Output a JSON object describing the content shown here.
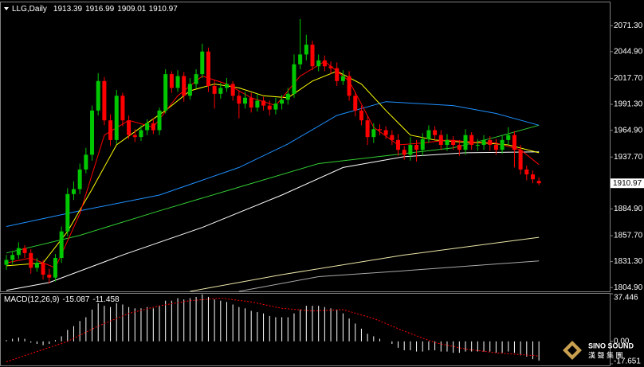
{
  "chart_data": {
    "type": "candlestick",
    "title": "LLG,Daily",
    "up_color": "#00c800",
    "down_color": "#ff0000",
    "open": [
      1828,
      1833,
      1838,
      1845,
      1840,
      1825,
      1830,
      1818,
      1815,
      1835,
      1862,
      1900,
      1905,
      1925,
      1940,
      1985,
      2015,
      1975,
      1955,
      2000,
      1975,
      1960,
      1958,
      1965,
      1972,
      1965,
      1985,
      2022,
      2008,
      2020,
      2000,
      2012,
      2022,
      2045,
      2010,
      2002,
      2008,
      2012,
      2000,
      1992,
      1998,
      1988,
      1995,
      1990,
      1986,
      1992,
      1996,
      2002,
      2032,
      2042,
      2052,
      2030,
      2036,
      2030,
      2028,
      2015,
      2020,
      2000,
      1985,
      1975,
      1958,
      1966,
      1965,
      1960,
      1955,
      1945,
      1940,
      1950,
      1945,
      1956,
      1965,
      1960,
      1950,
      1955,
      1950,
      1945,
      1960,
      1950,
      1950,
      1955,
      1950,
      1945,
      1955,
      1960,
      1945,
      1925,
      1920,
      1913.39
    ],
    "high": [
      1838,
      1842,
      1851,
      1848,
      1844,
      1835,
      1833,
      1824,
      1839,
      1867,
      1906,
      1913,
      1931,
      1947,
      1990,
      2023,
      2019,
      1981,
      2006,
      2003,
      1980,
      1966,
      1970,
      1976,
      1977,
      1988,
      2027,
      2025,
      2026,
      2024,
      2018,
      2027,
      2053,
      2049,
      2016,
      2013,
      2018,
      2015,
      2005,
      2004,
      2003,
      2002,
      1999,
      1995,
      1998,
      2001,
      2008,
      2042,
      2078,
      2062,
      2056,
      2042,
      2041,
      2035,
      2034,
      2026,
      2025,
      2004,
      1990,
      1980,
      1972,
      1971,
      1969,
      1965,
      1961,
      1949,
      1958,
      1955,
      1962,
      1970,
      1969,
      1965,
      1961,
      1959,
      1955,
      1966,
      1963,
      1956,
      1960,
      1959,
      1956,
      1960,
      1968,
      1964,
      1950,
      1929,
      1924,
      1916.99
    ],
    "low": [
      1823,
      1829,
      1834,
      1835,
      1819,
      1821,
      1813,
      1809,
      1811,
      1830,
      1857,
      1894,
      1900,
      1921,
      1934,
      1980,
      1970,
      1949,
      1951,
      1969,
      1956,
      1953,
      1954,
      1960,
      1961,
      1960,
      1982,
      2003,
      2004,
      1994,
      1996,
      2007,
      2018,
      2004,
      1987,
      1997,
      2004,
      1995,
      1977,
      1987,
      1983,
      1984,
      1985,
      1980,
      1981,
      1986,
      1991,
      1998,
      2027,
      2036,
      2026,
      2025,
      2025,
      2022,
      2010,
      2011,
      1995,
      1979,
      1970,
      1950,
      1952,
      1960,
      1956,
      1950,
      1939,
      1935,
      1934,
      1933,
      1939,
      1952,
      1955,
      1945,
      1944,
      1945,
      1939,
      1940,
      1945,
      1944,
      1945,
      1944,
      1940,
      1941,
      1950,
      1927,
      1920,
      1914,
      1911,
      1909.01
    ],
    "close": [
      1833,
      1838,
      1845,
      1840,
      1825,
      1830,
      1818,
      1815,
      1835,
      1862,
      1900,
      1905,
      1925,
      1940,
      1985,
      2015,
      1975,
      1955,
      2000,
      1975,
      1960,
      1958,
      1965,
      1972,
      1965,
      1985,
      2022,
      2008,
      2020,
      2000,
      2012,
      2022,
      2045,
      2010,
      2002,
      2008,
      2012,
      2000,
      1992,
      1998,
      1988,
      1995,
      1990,
      1986,
      1992,
      1996,
      2002,
      2032,
      2042,
      2052,
      2030,
      2036,
      2030,
      2028,
      2015,
      2020,
      2000,
      1985,
      1975,
      1958,
      1966,
      1965,
      1960,
      1955,
      1945,
      1940,
      1950,
      1945,
      1956,
      1965,
      1960,
      1950,
      1955,
      1950,
      1945,
      1960,
      1950,
      1950,
      1955,
      1950,
      1945,
      1955,
      1960,
      1945,
      1925,
      1920,
      1915,
      1910.97
    ],
    "lines": [
      {
        "color": "#a9a9a9",
        "x": [
          38,
          51,
          65,
          87
        ],
        "values": [
          1801,
          1816,
          1822,
          1832
        ]
      },
      {
        "color": "#eee8aa",
        "x": [
          30,
          45,
          65,
          87
        ],
        "values": [
          1801,
          1818,
          1838,
          1856
        ]
      },
      {
        "color": "#ffffff",
        "x": [
          0,
          7,
          19,
          32,
          45,
          55,
          65,
          75,
          87
        ],
        "values": [
          1802,
          1810,
          1838,
          1866,
          1899,
          1927,
          1938,
          1942,
          1943
        ]
      },
      {
        "color": "#32cd32",
        "x": [
          0,
          12,
          25,
          38,
          51,
          62,
          73,
          80,
          87
        ],
        "values": [
          1840,
          1858,
          1883,
          1907,
          1931,
          1939,
          1947,
          1958,
          1970
        ]
      },
      {
        "color": "#1e90ff",
        "x": [
          0,
          12,
          25,
          38,
          46,
          54,
          62,
          73,
          80,
          87
        ],
        "values": [
          1867,
          1883,
          1899,
          1927,
          1951,
          1980,
          1994,
          1990,
          1982,
          1970
        ]
      },
      {
        "color": "#ffff00",
        "x": [
          0,
          6,
          10,
          14,
          18,
          22,
          26,
          30,
          34,
          38,
          42,
          46,
          50,
          54,
          58,
          62,
          66,
          70,
          74,
          78,
          82,
          87
        ],
        "values": [
          1827,
          1830,
          1862,
          1905,
          1950,
          1968,
          1985,
          2005,
          2012,
          2008,
          2000,
          1998,
          2015,
          2025,
          2012,
          1985,
          1960,
          1955,
          1953,
          1952,
          1950,
          1942
        ]
      },
      {
        "color": "#ff0000",
        "x": [
          0,
          4,
          8,
          12,
          16,
          20,
          24,
          28,
          32,
          36,
          40,
          44,
          48,
          52,
          56,
          60,
          64,
          68,
          72,
          76,
          80,
          84,
          87
        ],
        "values": [
          1830,
          1835,
          1825,
          1880,
          1960,
          1975,
          1968,
          2000,
          2020,
          2012,
          1998,
          1990,
          2020,
          2035,
          2015,
          1968,
          1950,
          1952,
          1955,
          1953,
          1952,
          1945,
          1930
        ]
      }
    ],
    "ylim": [
      1801,
      2095
    ],
    "yticks": [
      {
        "value": 2071.3,
        "label": "2071.30"
      },
      {
        "value": 2044.9,
        "label": "2044.90"
      },
      {
        "value": 2017.7,
        "label": "2017.70"
      },
      {
        "value": 1991.3,
        "label": "1991.30"
      },
      {
        "value": 1964.9,
        "label": "1964.90"
      },
      {
        "value": 1937.7,
        "label": "1937.70"
      },
      {
        "value": 1884.9,
        "label": "1884.90"
      },
      {
        "value": 1857.7,
        "label": "1857.70"
      },
      {
        "value": 1831.3,
        "label": "1831.30"
      },
      {
        "value": 1804.9,
        "label": "1804.90"
      }
    ],
    "macd": {
      "type": "bar",
      "title": "MACD(12,26,9)",
      "color": "#ffffff",
      "values": [
        1,
        2,
        3,
        2,
        -1,
        -2,
        -3,
        -2,
        1,
        4,
        9,
        12,
        16,
        19,
        25,
        30,
        28,
        27,
        30,
        29,
        27,
        26,
        26,
        27,
        26,
        28,
        32,
        32,
        34,
        33,
        34,
        35,
        37,
        35,
        33,
        32,
        31,
        29,
        27,
        26,
        24,
        23,
        22,
        20,
        19,
        19,
        19,
        22,
        25,
        28,
        28,
        28,
        27,
        26,
        25,
        22,
        18,
        14,
        10,
        6,
        4,
        2,
        0,
        -2,
        -5,
        -7,
        -7,
        -8,
        -8,
        -7,
        -7,
        -8,
        -8,
        -9,
        -9,
        -8,
        -8,
        -8,
        -8,
        -8,
        -9,
        -9,
        -8,
        -9,
        -11,
        -12,
        -14,
        -15.087
      ],
      "signal": {
        "color": "#ff0000",
        "x": [
          0,
          5,
          10,
          15,
          20,
          25,
          30,
          35,
          40,
          45,
          50,
          55,
          60,
          65,
          70,
          75,
          80,
          87
        ],
        "values": [
          -16,
          -8,
          0,
          12,
          22,
          28,
          32,
          34,
          31,
          26,
          24,
          25,
          18,
          8,
          -1,
          -6,
          -9,
          -11.458
        ]
      },
      "ylim": [
        -17.651,
        37.446
      ],
      "yticks": [
        37.446,
        {
          "value": 0,
          "label": "0.00"
        },
        -17.651
      ]
    },
    "watermark": {
      "brand": "SINO SOUND",
      "subtitle": "漢 聲 集 團"
    }
  }
}
